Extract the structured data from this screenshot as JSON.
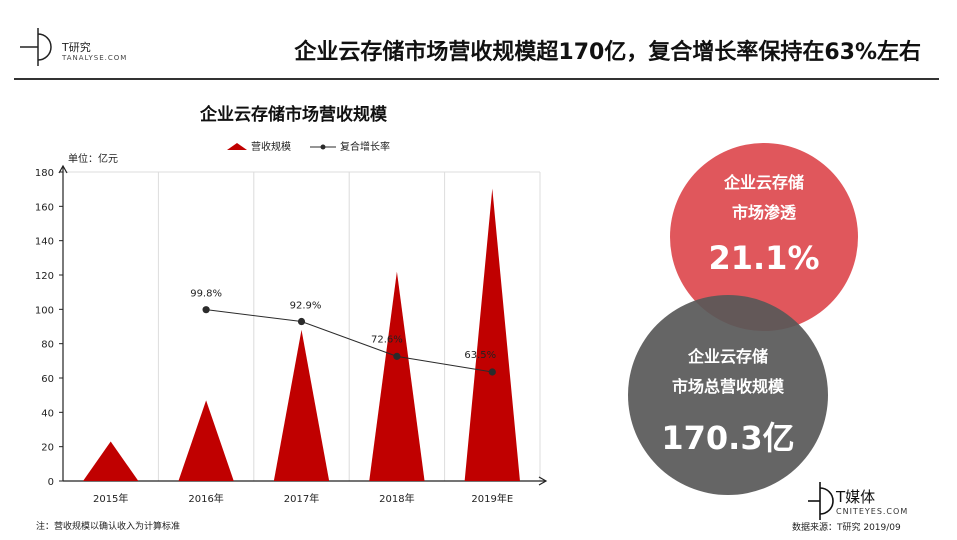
{
  "header": {
    "logo_name": "T研究",
    "logo_sub": "TANALYSE.COM",
    "headline": "企业云存储市场营收规模超170亿，复合增长率保持在63%左右"
  },
  "chart_data": {
    "type": "bar",
    "title": "企业云存储市场营收规模",
    "unit_label": "单位：亿元",
    "categories": [
      "2015年",
      "2016年",
      "2017年",
      "2018年",
      "2019年E"
    ],
    "series": [
      {
        "name": "营收规模",
        "type": "bar",
        "shape": "triangle",
        "color": "#c00000",
        "values": [
          23,
          47,
          88,
          122,
          170.3
        ]
      },
      {
        "name": "复合增长率",
        "type": "line",
        "color": "#2b2b2b",
        "values": [
          null,
          99.8,
          92.9,
          72.6,
          63.5
        ],
        "labels": [
          "",
          "99.8%",
          "92.9%",
          "72.6%",
          "63.5%"
        ]
      }
    ],
    "ylim": [
      0,
      180
    ],
    "yticks": [
      0,
      20,
      40,
      60,
      80,
      100,
      120,
      140,
      160,
      180
    ],
    "grid": true,
    "legend": "top"
  },
  "stats": {
    "penetration_label_1": "企业云存储",
    "penetration_label_2": "市场渗透",
    "penetration_value": "21.1%",
    "revenue_label_1": "企业云存储",
    "revenue_label_2": "市场总营收规模",
    "revenue_value": "170.3亿"
  },
  "footer": {
    "note": "注：营收规模以确认收入为计算标准",
    "source": "数据来源：T研究 2019/09",
    "brand_name": "T媒体",
    "brand_sub": "CNITEYES.COM"
  }
}
